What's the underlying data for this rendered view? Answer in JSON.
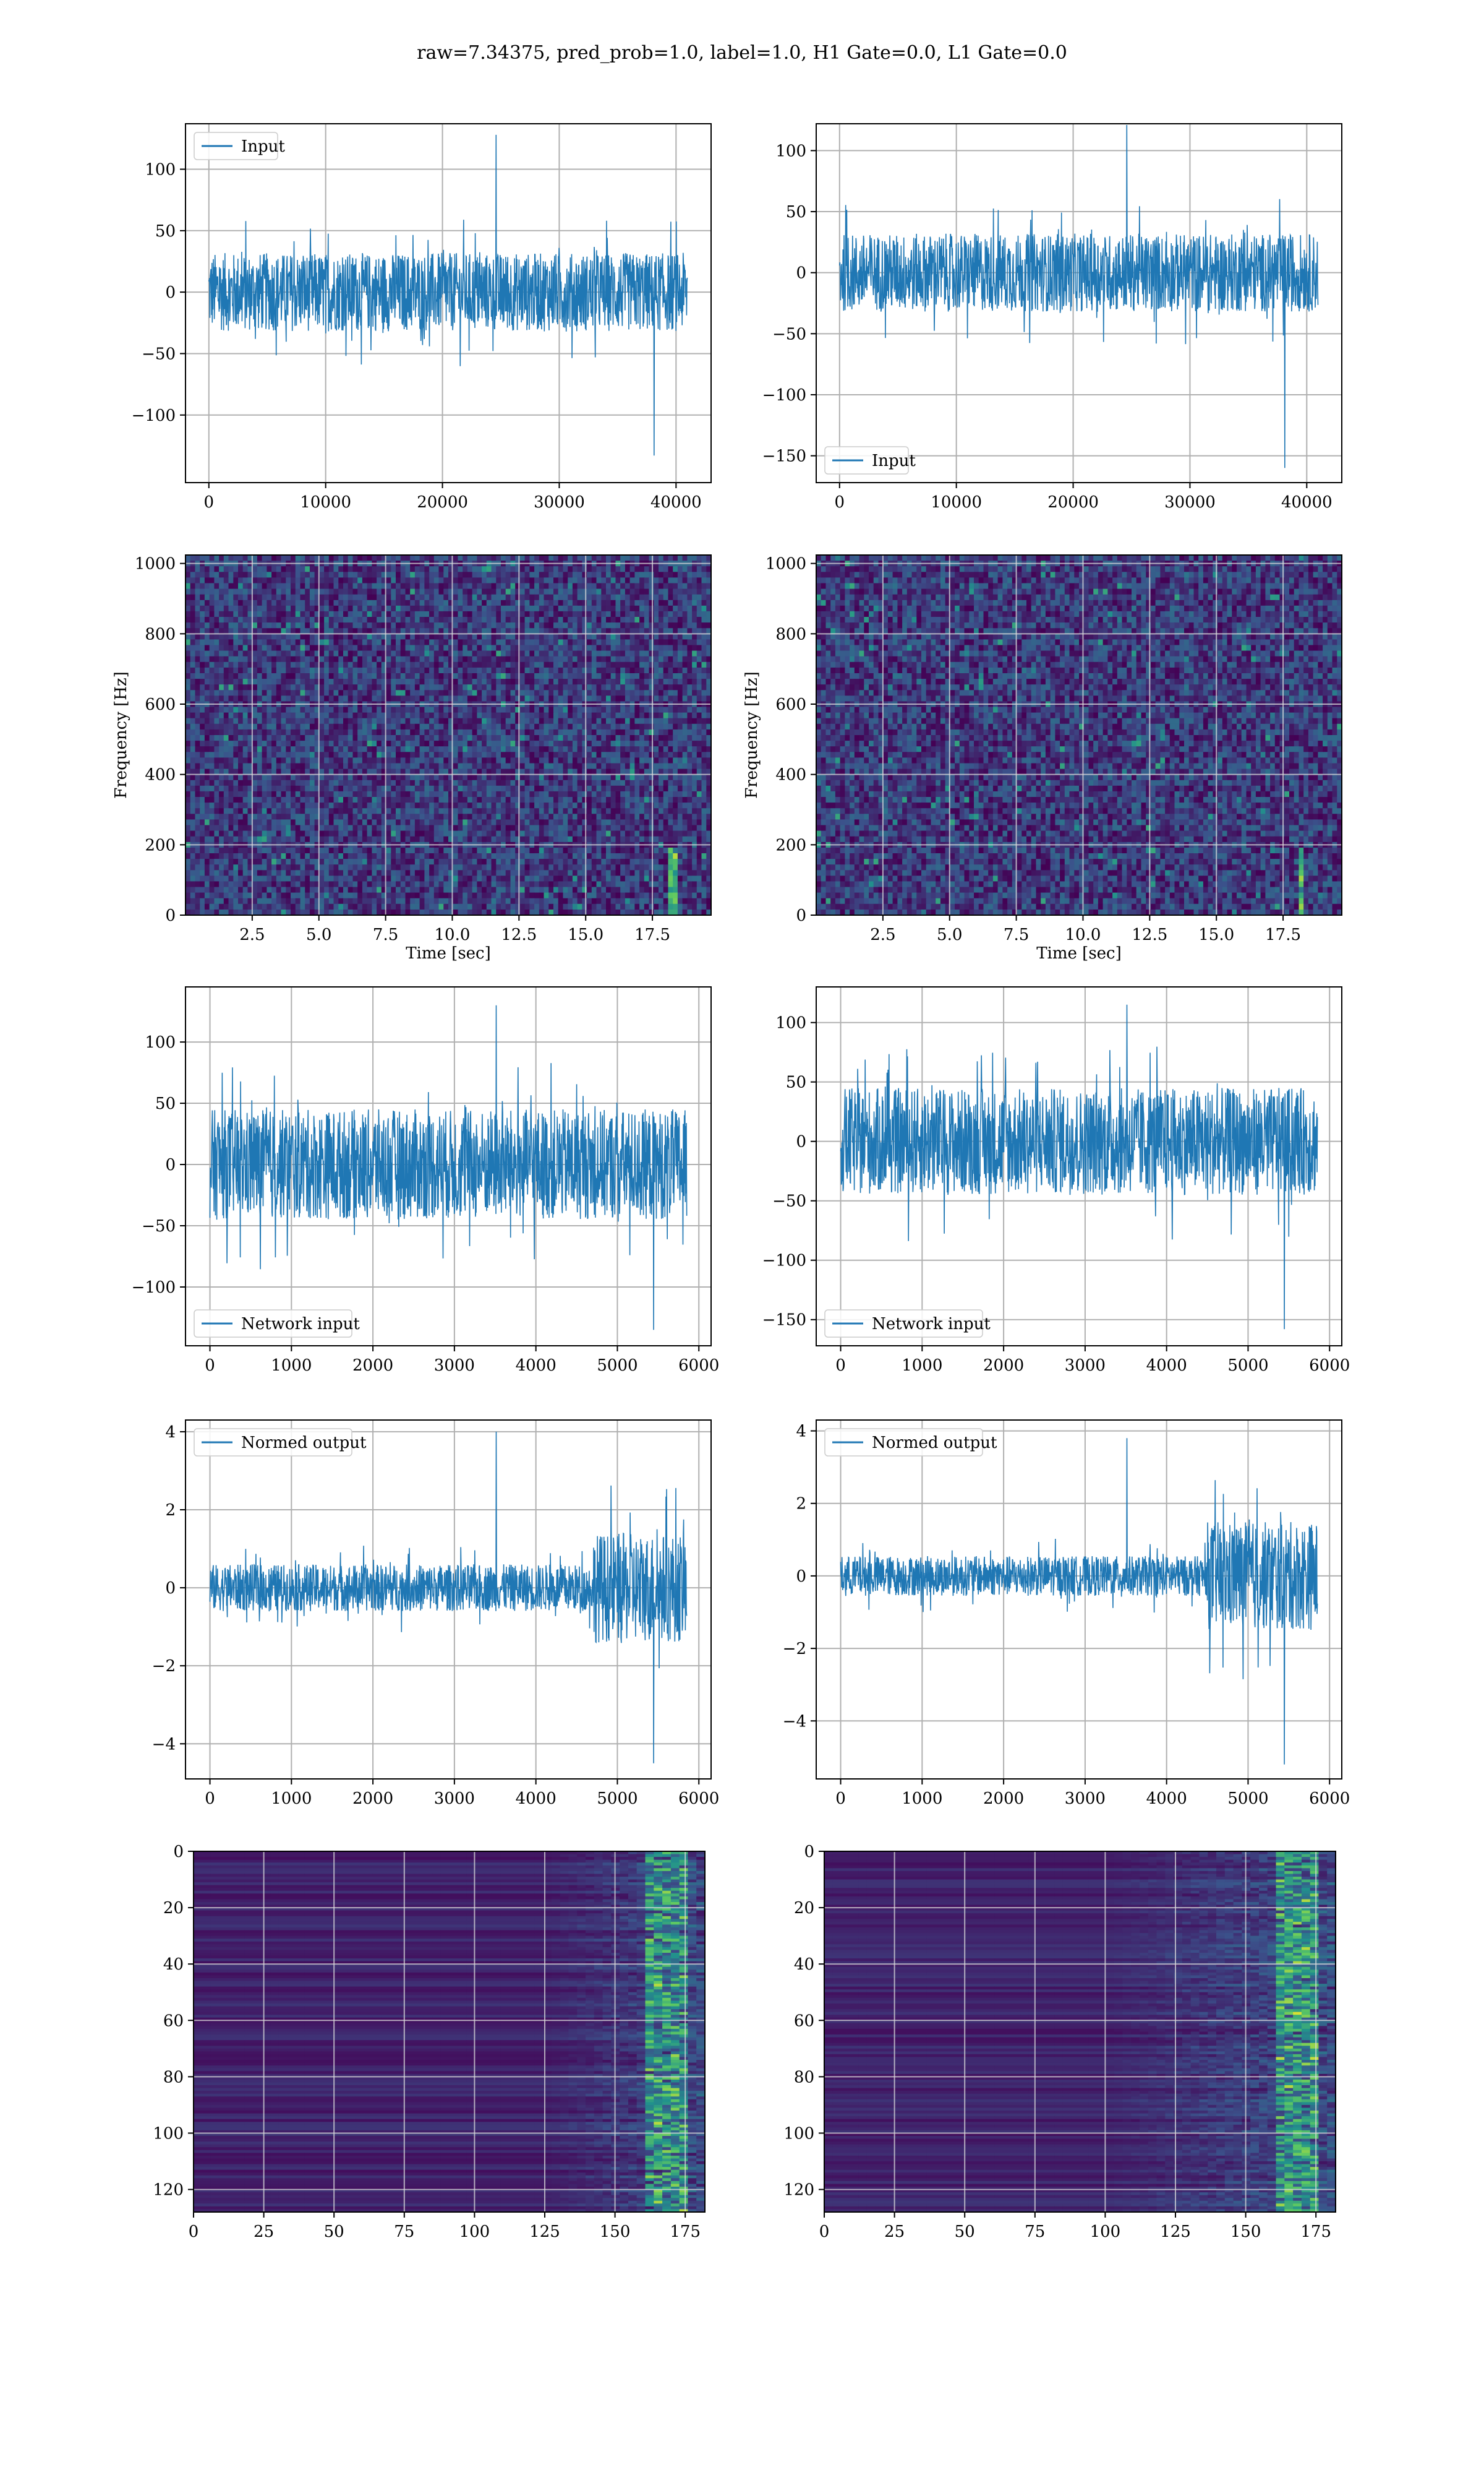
{
  "figure": {
    "title": "raw=7.34375, pred_prob=1.0, label=1.0, H1 Gate=0.0, L1 Gate=0.0"
  },
  "colors": {
    "line": "#1f77b4",
    "grid": "#b0b0b0",
    "viridis": [
      "#440154",
      "#3b528b",
      "#21918c",
      "#5ec962",
      "#fde725"
    ]
  },
  "chart_data": [
    {
      "id": "input-h1",
      "type": "line",
      "legend": "Input",
      "legend_loc": "upper left",
      "xlim": [
        -2000,
        43000
      ],
      "ylim": [
        -155,
        137
      ],
      "xticks": [
        0,
        10000,
        20000,
        30000,
        40000
      ],
      "yticks": [
        -100,
        -50,
        0,
        50,
        100
      ],
      "x_range": [
        0,
        40960
      ],
      "band": 32,
      "spike_max": 128,
      "spike_min": -133,
      "grid": true
    },
    {
      "id": "input-l1",
      "type": "line",
      "legend": "Input",
      "legend_loc": "lower left",
      "xlim": [
        -2000,
        43000
      ],
      "ylim": [
        -172,
        122
      ],
      "xticks": [
        0,
        10000,
        20000,
        30000,
        40000
      ],
      "yticks": [
        -150,
        -100,
        -50,
        0,
        50,
        100
      ],
      "x_range": [
        0,
        40960
      ],
      "band": 32,
      "spike_max": 121,
      "spike_min": -160,
      "grid": true
    },
    {
      "id": "spectrogram-h1",
      "type": "heatmap",
      "xlabel": "Time [sec]",
      "ylabel": "Frequency [Hz]",
      "xlim": [
        0,
        19.7
      ],
      "ylim": [
        0,
        1024
      ],
      "xticks": [
        2.5,
        5.0,
        7.5,
        10.0,
        12.5,
        15.0,
        17.5
      ],
      "yticks": [
        0,
        200,
        400,
        600,
        800,
        1000
      ],
      "xtick_labels": [
        "2.5",
        "5.0",
        "7.5",
        "10.0",
        "12.5",
        "15.0",
        "17.5"
      ],
      "hot_t": 18.3,
      "grid": true
    },
    {
      "id": "spectrogram-l1",
      "type": "heatmap",
      "xlabel": "Time [sec]",
      "ylabel": "Frequency [Hz]",
      "xlim": [
        0,
        19.7
      ],
      "ylim": [
        0,
        1024
      ],
      "xticks": [
        2.5,
        5.0,
        7.5,
        10.0,
        12.5,
        15.0,
        17.5
      ],
      "yticks": [
        0,
        200,
        400,
        600,
        800,
        1000
      ],
      "xtick_labels": [
        "2.5",
        "5.0",
        "7.5",
        "10.0",
        "12.5",
        "15.0",
        "17.5"
      ],
      "hot_t": 18.2,
      "grid": true
    },
    {
      "id": "network-input-h1",
      "type": "line",
      "legend": "Network input",
      "legend_loc": "lower left",
      "xlim": [
        -300,
        6150
      ],
      "ylim": [
        -148,
        145
      ],
      "xticks": [
        0,
        1000,
        2000,
        3000,
        4000,
        5000,
        6000
      ],
      "yticks": [
        -100,
        -50,
        0,
        50,
        100
      ],
      "x_range": [
        0,
        5851
      ],
      "band": 45,
      "spike_max": 130,
      "spike_min": -135,
      "grid": true
    },
    {
      "id": "network-input-l1",
      "type": "line",
      "legend": "Network input",
      "legend_loc": "lower left",
      "xlim": [
        -300,
        6150
      ],
      "ylim": [
        -172,
        130
      ],
      "xticks": [
        0,
        1000,
        2000,
        3000,
        4000,
        5000,
        6000
      ],
      "yticks": [
        -150,
        -100,
        -50,
        0,
        50,
        100
      ],
      "x_range": [
        0,
        5851
      ],
      "band": 45,
      "spike_max": 115,
      "spike_min": -158,
      "grid": true
    },
    {
      "id": "normed-output-h1",
      "type": "line",
      "legend": "Normed output",
      "legend_loc": "upper left",
      "xlim": [
        -300,
        6150
      ],
      "ylim": [
        -4.9,
        4.3
      ],
      "xticks": [
        0,
        1000,
        2000,
        3000,
        4000,
        5000,
        6000
      ],
      "yticks": [
        -4,
        -2,
        0,
        2,
        4
      ],
      "x_range": [
        0,
        5851
      ],
      "band": 0.6,
      "burst_from": 4700,
      "burst_band": 1.4,
      "spike_max": 4.0,
      "spike_min": -4.5,
      "grid": true
    },
    {
      "id": "normed-output-l1",
      "type": "line",
      "legend": "Normed output",
      "legend_loc": "upper left",
      "xlim": [
        -300,
        6150
      ],
      "ylim": [
        -5.6,
        4.3
      ],
      "xticks": [
        0,
        1000,
        2000,
        3000,
        4000,
        5000,
        6000
      ],
      "yticks": [
        -4,
        -2,
        0,
        2,
        4
      ],
      "x_range": [
        0,
        5851
      ],
      "band": 0.55,
      "burst_from": 4500,
      "burst_band": 1.5,
      "spike_max": 3.8,
      "spike_min": -5.2,
      "grid": true
    },
    {
      "id": "feature-map-h1",
      "type": "heatmap",
      "xlim": [
        0,
        182
      ],
      "ylim": [
        128,
        0
      ],
      "xticks": [
        0,
        25,
        50,
        75,
        100,
        125,
        150,
        175
      ],
      "yticks": [
        0,
        20,
        40,
        60,
        80,
        100,
        120
      ],
      "xtick_labels": [
        "0",
        "25",
        "50",
        "75",
        "100",
        "125",
        "150",
        "175"
      ],
      "active_from": 125,
      "grid": true
    },
    {
      "id": "feature-map-l1",
      "type": "heatmap",
      "xlim": [
        0,
        182
      ],
      "ylim": [
        128,
        0
      ],
      "xticks": [
        0,
        25,
        50,
        75,
        100,
        125,
        150,
        175
      ],
      "yticks": [
        0,
        20,
        40,
        60,
        80,
        100,
        120
      ],
      "xtick_labels": [
        "0",
        "25",
        "50",
        "75",
        "100",
        "125",
        "150",
        "175"
      ],
      "active_from": 100,
      "grid": true
    }
  ]
}
